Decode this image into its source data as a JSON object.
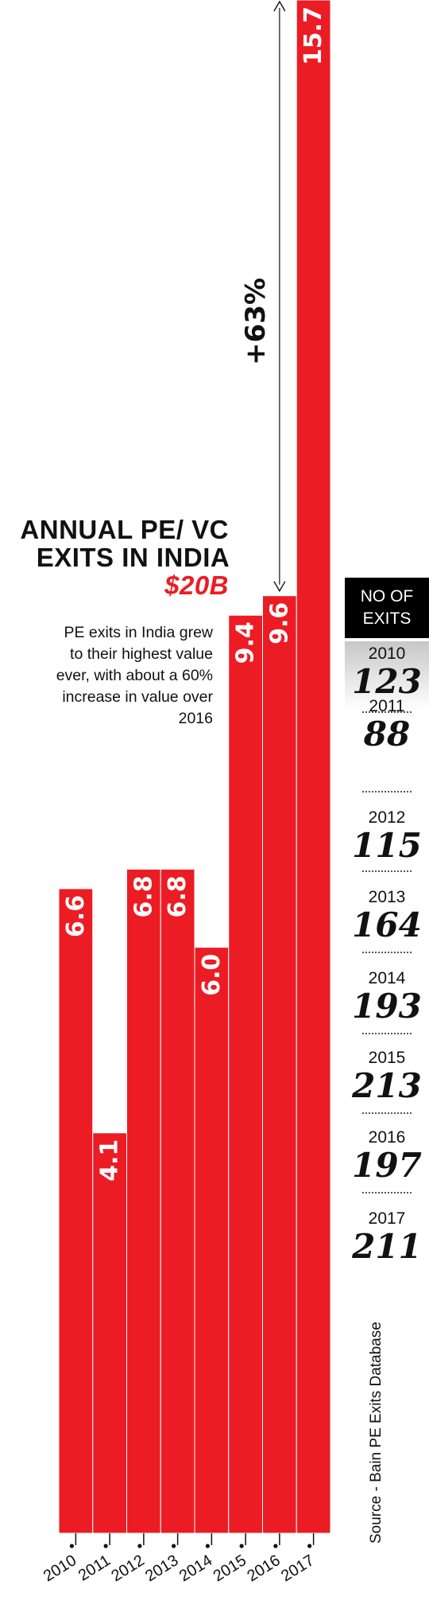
{
  "chart_data": {
    "type": "bar",
    "title": "ANNUAL PE/ VC EXITS IN INDIA",
    "title_highlight": "$20B",
    "subtitle": "PE exits in India grew to their highest value ever, with about a 60% increase in value over 2016",
    "categories": [
      "2010",
      "2011",
      "2012",
      "2013",
      "2014",
      "2015",
      "2016",
      "2017"
    ],
    "values": [
      6.6,
      4.1,
      6.8,
      6.8,
      6.0,
      9.4,
      9.6,
      15.7
    ],
    "value_labels": [
      "6.6",
      "4.1",
      "6.8",
      "6.8",
      "6.0",
      "9.4",
      "9.6",
      "15.7"
    ],
    "annotation": "+63%",
    "ylim": [
      0,
      15.7
    ],
    "grid": false,
    "bar_color": "#ec1c24",
    "number_of_exits": {
      "header": "NO OF EXITS",
      "years": [
        "2010",
        "2011",
        "2012",
        "2013",
        "2014",
        "2015",
        "2016",
        "2017"
      ],
      "values": [
        "123",
        "88",
        "115",
        "164",
        "193",
        "213",
        "197",
        "211"
      ]
    },
    "source": "Source - Bain PE Exits Database"
  }
}
